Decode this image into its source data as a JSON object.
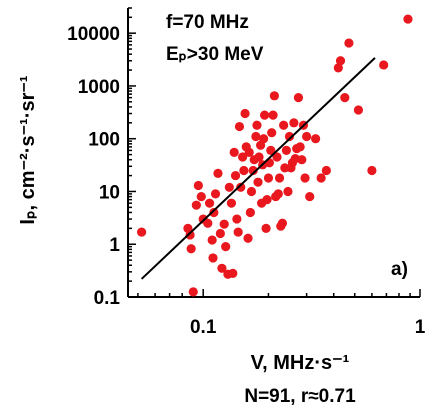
{
  "chart_data": {
    "type": "scatter",
    "x_scale": "log",
    "y_scale": "log",
    "xlim": [
      0.045,
      1.0
    ],
    "ylim": [
      0.1,
      30000
    ],
    "x_ticks": [
      {
        "value": 0.1,
        "label": "0.1"
      },
      {
        "value": 1,
        "label": "1"
      }
    ],
    "y_ticks": [
      {
        "value": 0.1,
        "label": "0.1"
      },
      {
        "value": 1,
        "label": "1"
      },
      {
        "value": 10,
        "label": "10"
      },
      {
        "value": 100,
        "label": "100"
      },
      {
        "value": 1000,
        "label": "1000"
      },
      {
        "value": 10000,
        "label": "10000"
      }
    ],
    "xlabel": "V, MHz·s⁻¹",
    "ylabel": "Iₚ, cm⁻²·s⁻¹·sr⁻¹",
    "annotations": {
      "frequency": "f=70 MHz",
      "energy": "Eₚ>30 MeV",
      "panel": "a)",
      "stats": "N=91, r≈0.71"
    },
    "colors": {
      "points": "#e8181e",
      "fit_line": "#000000"
    },
    "fit_line": {
      "x": [
        0.052,
        0.62
      ],
      "y": [
        0.22,
        3400
      ]
    },
    "points": [
      [
        0.052,
        1.7
      ],
      [
        0.085,
        2.0
      ],
      [
        0.087,
        1.5
      ],
      [
        0.088,
        0.82
      ],
      [
        0.09,
        0.125
      ],
      [
        0.093,
        5.5
      ],
      [
        0.095,
        13
      ],
      [
        0.098,
        8
      ],
      [
        0.1,
        3
      ],
      [
        0.105,
        2.5
      ],
      [
        0.107,
        6
      ],
      [
        0.11,
        1.2
      ],
      [
        0.111,
        0.55
      ],
      [
        0.112,
        4
      ],
      [
        0.114,
        9
      ],
      [
        0.117,
        22
      ],
      [
        0.12,
        1.6
      ],
      [
        0.122,
        0.35
      ],
      [
        0.125,
        2.4
      ],
      [
        0.127,
        0.9
      ],
      [
        0.13,
        0.27
      ],
      [
        0.132,
        12
      ],
      [
        0.135,
        6
      ],
      [
        0.137,
        0.28
      ],
      [
        0.139,
        55
      ],
      [
        0.141,
        20
      ],
      [
        0.143,
        3
      ],
      [
        0.145,
        1.7
      ],
      [
        0.147,
        170
      ],
      [
        0.149,
        12
      ],
      [
        0.152,
        45
      ],
      [
        0.154,
        25
      ],
      [
        0.156,
        300
      ],
      [
        0.158,
        70
      ],
      [
        0.161,
        1.3
      ],
      [
        0.163,
        55
      ],
      [
        0.165,
        4
      ],
      [
        0.167,
        10
      ],
      [
        0.17,
        25
      ],
      [
        0.172,
        40
      ],
      [
        0.175,
        110
      ],
      [
        0.177,
        180
      ],
      [
        0.179,
        15
      ],
      [
        0.181,
        45
      ],
      [
        0.184,
        75
      ],
      [
        0.186,
        6
      ],
      [
        0.188,
        32
      ],
      [
        0.19,
        100
      ],
      [
        0.192,
        280
      ],
      [
        0.195,
        2
      ],
      [
        0.197,
        7
      ],
      [
        0.2,
        18
      ],
      [
        0.202,
        35
      ],
      [
        0.205,
        60
      ],
      [
        0.207,
        130
      ],
      [
        0.21,
        280
      ],
      [
        0.213,
        650
      ],
      [
        0.216,
        8
      ],
      [
        0.219,
        45
      ],
      [
        0.222,
        9
      ],
      [
        0.225,
        18
      ],
      [
        0.228,
        2.2
      ],
      [
        0.232,
        2.5
      ],
      [
        0.235,
        180
      ],
      [
        0.238,
        28
      ],
      [
        0.242,
        60
      ],
      [
        0.246,
        10
      ],
      [
        0.25,
        110
      ],
      [
        0.254,
        28
      ],
      [
        0.258,
        35
      ],
      [
        0.262,
        200
      ],
      [
        0.266,
        42
      ],
      [
        0.27,
        65
      ],
      [
        0.275,
        600
      ],
      [
        0.28,
        70
      ],
      [
        0.285,
        40
      ],
      [
        0.29,
        180
      ],
      [
        0.295,
        18
      ],
      [
        0.3,
        110
      ],
      [
        0.31,
        8
      ],
      [
        0.33,
        100
      ],
      [
        0.35,
        18
      ],
      [
        0.37,
        25
      ],
      [
        0.42,
        2200
      ],
      [
        0.43,
        3000
      ],
      [
        0.45,
        600
      ],
      [
        0.47,
        6500
      ],
      [
        0.52,
        350
      ],
      [
        0.6,
        25
      ],
      [
        0.68,
        2500
      ],
      [
        0.88,
        18500
      ]
    ]
  }
}
